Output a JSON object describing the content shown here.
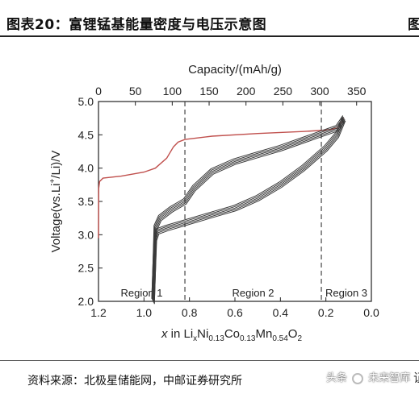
{
  "header": {
    "title": "图表20：富锂锰基能量密度与电压示意图",
    "right_fragment": "图"
  },
  "footer": {
    "source": "资料来源：北极星储能网，中邮证券研究所",
    "watermark_prefix": "头条",
    "watermark_name": "未来智库",
    "edge_fragment": "证"
  },
  "colors": {
    "first_charge": "#c0504d",
    "cycles": "#3a3a3a",
    "axis": "#222222"
  },
  "chart_data": {
    "type": "line",
    "x_top": {
      "label": "Capacity/(mAh/g)",
      "range": [
        0,
        370
      ],
      "ticks": [
        0,
        50,
        100,
        150,
        200,
        250,
        300,
        350
      ]
    },
    "x_bottom": {
      "label": "x in LixNi0.13Co0.13Mn0.54O2",
      "range": [
        1.2,
        0.0
      ],
      "ticks": [
        "1.2",
        "1.0",
        "0.8",
        "0.6",
        "0.4",
        "0.2",
        "0.0"
      ]
    },
    "y": {
      "label": "Voltage(vs.Li+/Li)/V",
      "range": [
        2.0,
        5.0
      ],
      "ticks": [
        "2.0",
        "2.5",
        "3.0",
        "3.5",
        "4.0",
        "4.5",
        "5.0"
      ]
    },
    "grid": false,
    "region_dividers_x": [
      0.82,
      0.22
    ],
    "regions": [
      "Region 1",
      "Region 2",
      "Region 3"
    ],
    "series": [
      {
        "color": "#c0504d",
        "points": [
          [
            1.2,
            2.95
          ],
          [
            1.199,
            3.7
          ],
          [
            1.195,
            3.8
          ],
          [
            1.18,
            3.85
          ],
          [
            1.1,
            3.88
          ],
          [
            1.0,
            3.94
          ],
          [
            0.95,
            4.0
          ],
          [
            0.9,
            4.15
          ],
          [
            0.87,
            4.32
          ],
          [
            0.85,
            4.39
          ],
          [
            0.82,
            4.43
          ],
          [
            0.7,
            4.48
          ],
          [
            0.5,
            4.52
          ],
          [
            0.3,
            4.55
          ],
          [
            0.2,
            4.57
          ],
          [
            0.15,
            4.6
          ],
          [
            0.12,
            4.75
          ]
        ]
      },
      {
        "color": "#3a3a3a",
        "points": [
          [
            0.12,
            4.75
          ],
          [
            0.15,
            4.6
          ],
          [
            0.25,
            4.48
          ],
          [
            0.4,
            4.3
          ],
          [
            0.5,
            4.2
          ],
          [
            0.6,
            4.1
          ],
          [
            0.7,
            3.95
          ],
          [
            0.78,
            3.7
          ],
          [
            0.82,
            3.5
          ],
          [
            0.88,
            3.38
          ],
          [
            0.93,
            3.25
          ],
          [
            0.95,
            3.1
          ],
          [
            0.955,
            2.5
          ],
          [
            0.96,
            2.0
          ]
        ]
      },
      {
        "color": "#3a3a3a",
        "points": [
          [
            0.96,
            2.0
          ],
          [
            0.955,
            2.5
          ],
          [
            0.95,
            2.95
          ],
          [
            0.94,
            3.05
          ],
          [
            0.9,
            3.1
          ],
          [
            0.8,
            3.2
          ],
          [
            0.7,
            3.3
          ],
          [
            0.6,
            3.4
          ],
          [
            0.5,
            3.55
          ],
          [
            0.4,
            3.75
          ],
          [
            0.3,
            4.0
          ],
          [
            0.2,
            4.3
          ],
          [
            0.15,
            4.5
          ],
          [
            0.12,
            4.75
          ]
        ]
      }
    ],
    "cycle_count_drawn": 5
  }
}
